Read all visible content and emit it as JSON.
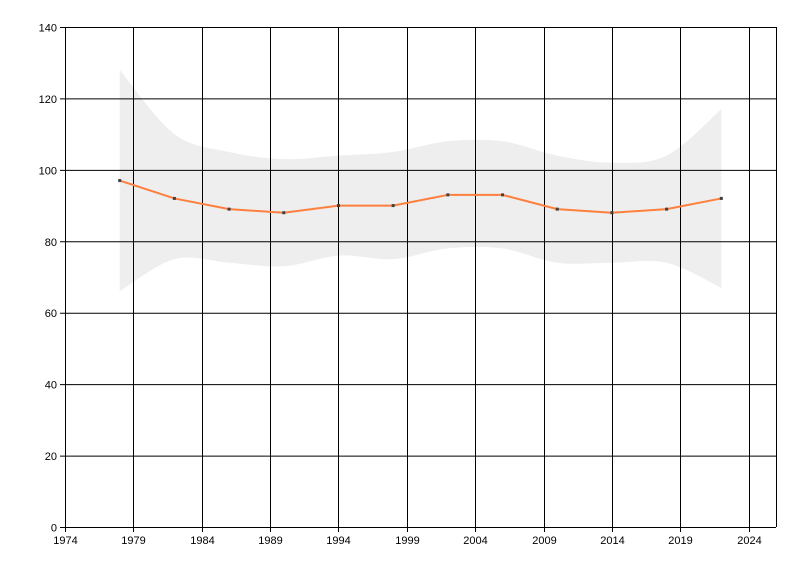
{
  "chart_data": {
    "type": "line",
    "title": "",
    "xlabel": "",
    "ylabel": "",
    "xlim": [
      1974,
      2026
    ],
    "ylim": [
      0,
      140
    ],
    "x_ticks": [
      "1974",
      "1979",
      "1984",
      "1989",
      "1994",
      "1999",
      "2004",
      "2009",
      "2014",
      "2019",
      "2024"
    ],
    "y_ticks": [
      "0",
      "20",
      "40",
      "60",
      "80",
      "100",
      "120",
      "140"
    ],
    "grid": true,
    "legend": "none",
    "x": [
      1978,
      1982,
      1986,
      1990,
      1994,
      1998,
      2002,
      2006,
      2010,
      2014,
      2018,
      2022
    ],
    "series": [
      {
        "values": [
          97,
          92,
          89,
          88,
          90,
          90,
          93,
          93,
          89,
          88,
          89,
          92
        ],
        "color": "#ff7f3f"
      }
    ],
    "band": {
      "upper": [
        128,
        110,
        105,
        103,
        104,
        105,
        108,
        108,
        104,
        102,
        104,
        117
      ],
      "lower": [
        66,
        75,
        74,
        73,
        76,
        75,
        78,
        78,
        74,
        74,
        74,
        67
      ],
      "color": "#eeeeee"
    },
    "marker_color": "#404040",
    "grid_color": "#000000"
  }
}
